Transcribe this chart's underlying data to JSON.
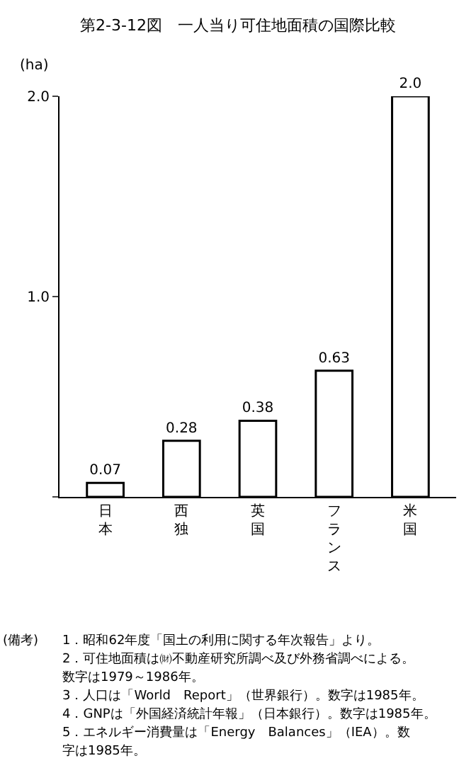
{
  "chart_data": {
    "type": "bar",
    "title": "第2-3-12図　一人当り可住地面積の国際比較",
    "ylabel": "(ha)",
    "categories": [
      "日本",
      "西独",
      "英国",
      "フランス",
      "米国"
    ],
    "values": [
      0.07,
      0.28,
      0.38,
      0.63,
      2.0
    ],
    "color": "#000000",
    "ylim": [
      0,
      2.0
    ],
    "yticks": [
      {
        "value": 0,
        "label": null
      },
      {
        "value": 1,
        "label": "1.0"
      },
      {
        "value": 2,
        "label": "2.0"
      }
    ],
    "value_labels": [
      "0.07",
      "0.28",
      "0.38",
      "0.63",
      "2.0"
    ],
    "annotations": [
      "(備考)",
      "1．昭和62年度「国土の利用に関する年次報告」より。",
      "2．可住地面積は㈶不動産研究所調べ及び外務省調べによる。",
      "数字は1979～1986年。",
      "3．人口は「World　Report」（世界銀行）。数字は1985年。",
      "4．GNPは「外国経済統計年報」（日本銀行）。数字は1985年。",
      "5．エネルギー消費量は「Energy　Balances」（IEA）。数",
      "字は1985年。"
    ]
  }
}
